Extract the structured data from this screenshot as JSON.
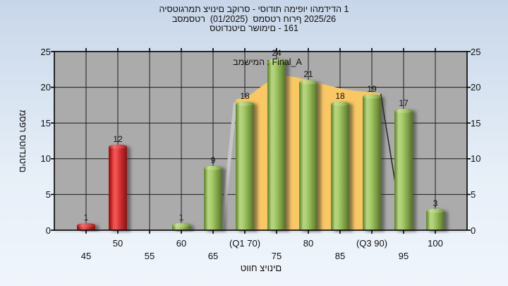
{
  "title": {
    "line1": "היסטוגרמת ציונים בקורס - יסודות המיפוי והמדידה 1",
    "line2": "בסמסטר  (01/2025)  סמסטר חורף 2025/26",
    "line3": "סטודנטים רשומים - 161"
  },
  "annotation": {
    "text": "במשימה : Final_A"
  },
  "chart_data": {
    "type": "bar",
    "xlabel": "טווח ציונים",
    "ylabel": "מספר סטודנטים",
    "xlim": [
      40,
      105
    ],
    "ylim": [
      0,
      25
    ],
    "grid": "on",
    "y_ticks": [
      0,
      5,
      10,
      15,
      20,
      25
    ],
    "x_ticks": [
      {
        "value": 45,
        "label": "45",
        "row": "lower"
      },
      {
        "value": 50,
        "label": "50",
        "row": "upper"
      },
      {
        "value": 55,
        "label": "55",
        "row": "lower"
      },
      {
        "value": 60,
        "label": "60",
        "row": "upper"
      },
      {
        "value": 65,
        "label": "65",
        "row": "lower"
      },
      {
        "value": 70,
        "label": "(Q1 70)",
        "row": "upper"
      },
      {
        "value": 75,
        "label": "75",
        "row": "lower"
      },
      {
        "value": 80,
        "label": "80",
        "row": "upper"
      },
      {
        "value": 85,
        "label": "85",
        "row": "lower"
      },
      {
        "value": 90,
        "label": "(Q3 90)",
        "row": "upper"
      },
      {
        "value": 95,
        "label": "95",
        "row": "lower"
      },
      {
        "value": 100,
        "label": "100",
        "row": "upper"
      }
    ],
    "bars": [
      {
        "x": 45,
        "value": 1,
        "color": "red"
      },
      {
        "x": 50,
        "value": 12,
        "color": "red"
      },
      {
        "x": 55,
        "value": 0,
        "color": "none"
      },
      {
        "x": 60,
        "value": 1,
        "color": "green"
      },
      {
        "x": 65,
        "value": 9,
        "color": "green"
      },
      {
        "x": 70,
        "value": 18,
        "color": "green"
      },
      {
        "x": 75,
        "value": 24,
        "color": "green"
      },
      {
        "x": 80,
        "value": 21,
        "color": "green"
      },
      {
        "x": 85,
        "value": 18,
        "color": "green"
      },
      {
        "x": 90,
        "value": 19,
        "color": "green"
      },
      {
        "x": 95,
        "value": 17,
        "color": "green"
      },
      {
        "x": 100,
        "value": 3,
        "color": "green"
      }
    ],
    "overlay_area": {
      "color": "#f9c763",
      "baseline": 0,
      "points": [
        [
          68.6,
          18.3
        ],
        [
          70.5,
          18.7
        ],
        [
          73.0,
          20.4
        ],
        [
          75.8,
          21.7
        ],
        [
          78.0,
          21.4
        ],
        [
          80.0,
          21.05
        ],
        [
          82.5,
          20.4
        ],
        [
          85.0,
          19.85
        ],
        [
          87.5,
          19.5
        ],
        [
          90.0,
          19.3
        ],
        [
          91.4,
          19.15
        ]
      ]
    },
    "overlay_left_band": {
      "color": "#c6c6c6",
      "from": [
        66.4,
        0
      ],
      "to": [
        68.5,
        17.9
      ]
    },
    "overlay_right_line": {
      "color": "#2b2b2b",
      "from": [
        91.4,
        19.1
      ],
      "to": [
        94.9,
        0
      ]
    }
  },
  "colors": {
    "page_bg_top": "#c7d6e9",
    "page_bg_bottom": "#f0f5fc",
    "plot_bg": "#ababab",
    "grid": "#1c1c1c",
    "border": "#000000",
    "area_yellow": "#f9c763",
    "bar_red_mid": "#f25858",
    "bar_red_edge": "#8c1313",
    "bar_green_mid": "#b6d583",
    "bar_green_edge": "#53702a",
    "text": "#0f0f0f"
  }
}
